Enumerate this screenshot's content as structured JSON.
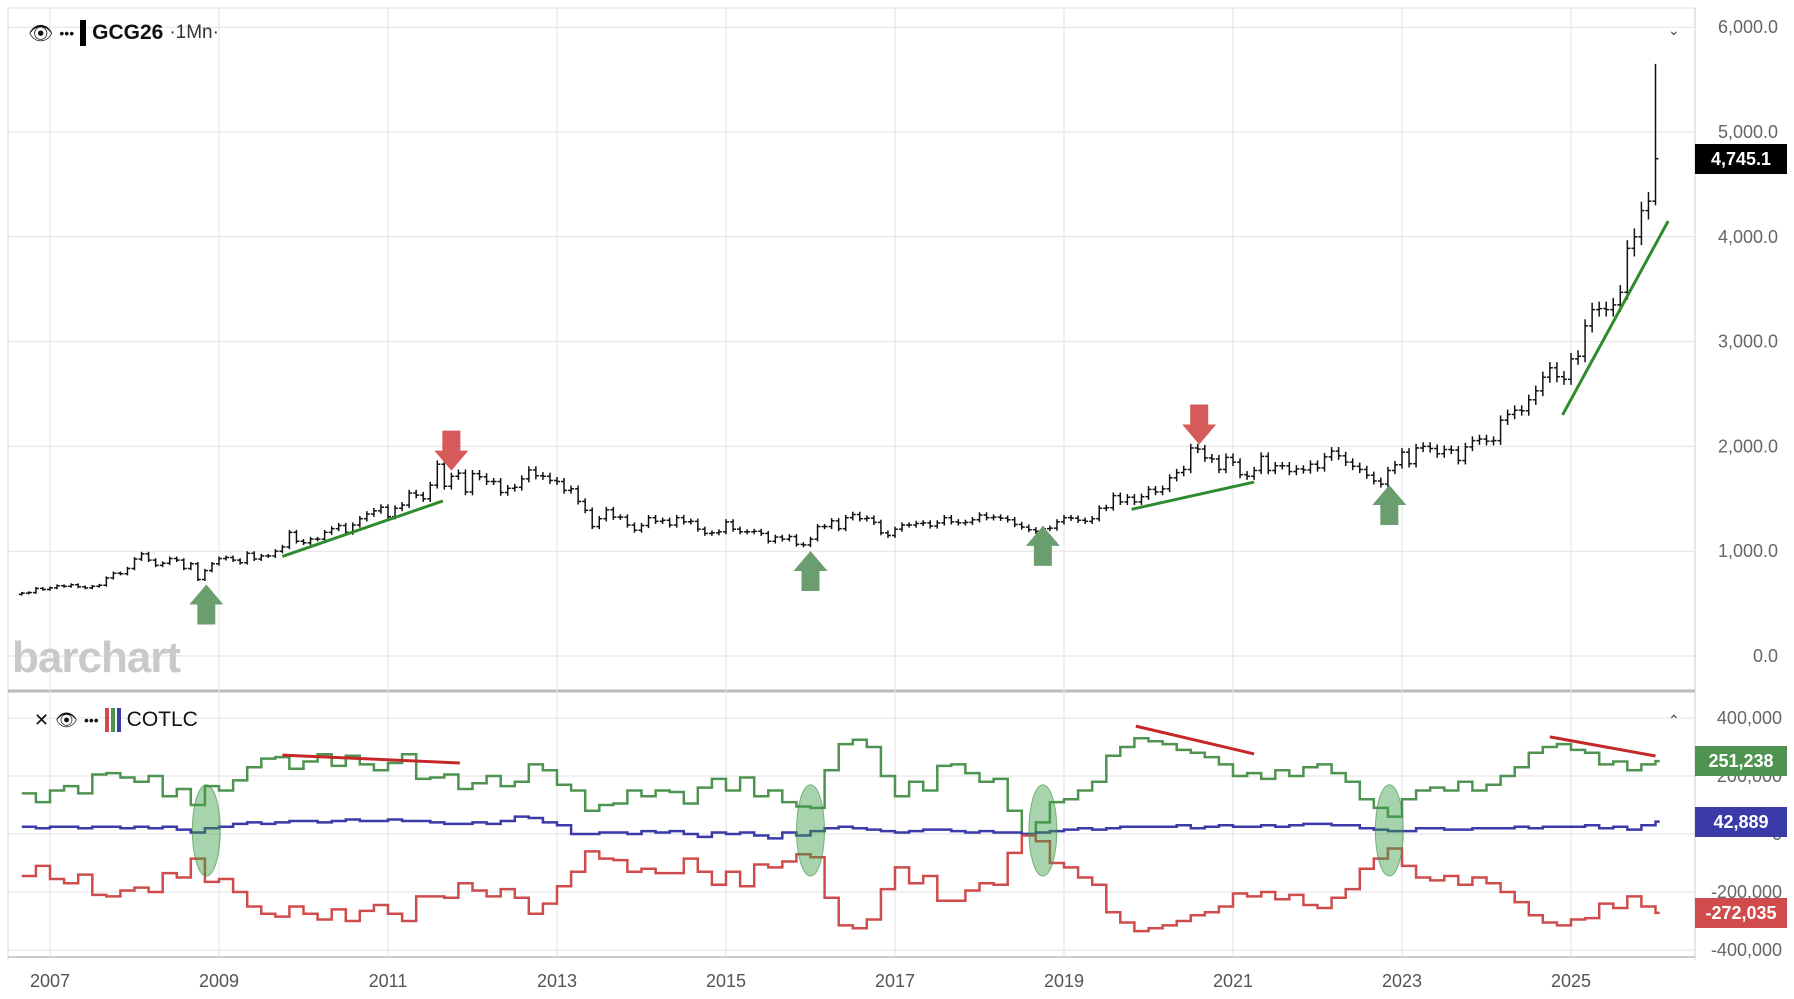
{
  "header": {
    "symbol": "GCG26",
    "period": "·1Mn·",
    "eye_icon": "eye-icon",
    "more_icon": "ellipsis-icon"
  },
  "lower_header": {
    "title": "COTLC",
    "close_icon": "close-icon",
    "eye_icon": "eye-icon",
    "more_icon": "ellipsis-icon"
  },
  "watermark": "barchart",
  "colors": {
    "green": "#4e9350",
    "blue": "#3a3aa8",
    "red": "#d04c4c",
    "trend_green": "#2e8b2e",
    "trend_red": "#c62828",
    "arrow_red": "#d65a5a",
    "arrow_green": "#6b9e6e"
  },
  "price_labels": {
    "last": "4,745.1",
    "green": "251,238",
    "blue": "42,889",
    "red": "-272,035"
  },
  "chart_data": [
    {
      "type": "bar",
      "subtype": "ohlc-monthly",
      "symbol": "GCG26",
      "start": "2006-09",
      "close": [
        600,
        605,
        645,
        635,
        650,
        670,
        665,
        680,
        660,
        650,
        665,
        675,
        745,
        790,
        785,
        835,
        925,
        975,
        915,
        865,
        885,
        930,
        915,
        835,
        880,
        730,
        815,
        880,
        930,
        940,
        915,
        890,
        980,
        925,
        955,
        955,
        1000,
        1040,
        1180,
        1095,
        1080,
        1115,
        1115,
        1180,
        1215,
        1245,
        1180,
        1250,
        1310,
        1355,
        1385,
        1420,
        1330,
        1410,
        1440,
        1555,
        1535,
        1500,
        1630,
        1830,
        1620,
        1715,
        1745,
        1565,
        1740,
        1710,
        1665,
        1665,
        1560,
        1600,
        1610,
        1690,
        1775,
        1720,
        1715,
        1675,
        1665,
        1580,
        1595,
        1475,
        1390,
        1235,
        1310,
        1395,
        1325,
        1325,
        1250,
        1200,
        1245,
        1320,
        1285,
        1295,
        1250,
        1320,
        1280,
        1285,
        1210,
        1170,
        1175,
        1185,
        1280,
        1210,
        1185,
        1185,
        1190,
        1170,
        1095,
        1135,
        1115,
        1140,
        1065,
        1060,
        1115,
        1235,
        1235,
        1290,
        1215,
        1320,
        1350,
        1310,
        1315,
        1275,
        1175,
        1150,
        1210,
        1250,
        1250,
        1265,
        1270,
        1240,
        1270,
        1320,
        1280,
        1270,
        1275,
        1300,
        1345,
        1320,
        1325,
        1315,
        1300,
        1255,
        1230,
        1205,
        1190,
        1215,
        1220,
        1280,
        1320,
        1315,
        1295,
        1285,
        1310,
        1410,
        1415,
        1530,
        1470,
        1515,
        1470,
        1520,
        1590,
        1565,
        1595,
        1700,
        1750,
        1780,
        1985,
        1975,
        1890,
        1880,
        1780,
        1895,
        1850,
        1730,
        1715,
        1770,
        1905,
        1770,
        1815,
        1815,
        1760,
        1785,
        1775,
        1830,
        1795,
        1900,
        1955,
        1910,
        1850,
        1810,
        1780,
        1725,
        1670,
        1640,
        1770,
        1825,
        1945,
        1835,
        1985,
        2000,
        1980,
        1930,
        1970,
        1965,
        1865,
        1995,
        2055,
        2070,
        2050,
        2055,
        2250,
        2305,
        2345,
        2340,
        2445,
        2530,
        2660,
        2750,
        2665,
        2640,
        2835,
        2860,
        3150,
        3305,
        3315,
        3305,
        3350,
        3470,
        3890,
        4000,
        4250,
        4340,
        4745.1
      ],
      "last_bar": {
        "high": 5650,
        "low": 4300,
        "close": 4745.1
      },
      "ylim": [
        0,
        6000
      ],
      "yticks": [
        "0.0",
        "1,000.0",
        "2,000.0",
        "3,000.0",
        "4,000.0",
        "5,000.0",
        "6,000.0"
      ],
      "ytick_values": [
        0,
        1000,
        2000,
        3000,
        4000,
        5000,
        6000
      ],
      "grid": true,
      "annotations": {
        "arrows_down": [
          {
            "x": 2011.75,
            "y": 2150
          },
          {
            "x": 2020.6,
            "y": 2400
          }
        ],
        "arrows_up": [
          {
            "x": 2008.85,
            "y": 300
          },
          {
            "x": 2016.0,
            "y": 620
          },
          {
            "x": 2018.75,
            "y": 860
          },
          {
            "x": 2022.85,
            "y": 1250
          }
        ],
        "trendlines": [
          {
            "x1": 2009.75,
            "y1": 950,
            "x2": 2011.65,
            "y2": 1480
          },
          {
            "x1": 2019.8,
            "y1": 1400,
            "x2": 2021.25,
            "y2": 1660
          },
          {
            "x1": 2024.9,
            "y1": 2300,
            "x2": 2026.15,
            "y2": 4150
          }
        ]
      }
    },
    {
      "type": "line",
      "subtype": "step",
      "title": "COTLC",
      "start": "2006-09",
      "step_months": 2,
      "series": [
        {
          "color": "#4e9350",
          "values": [
            140000,
            110000,
            150000,
            165000,
            140000,
            205000,
            210000,
            195000,
            180000,
            200000,
            130000,
            155000,
            100000,
            165000,
            150000,
            185000,
            230000,
            260000,
            265000,
            225000,
            250000,
            275000,
            235000,
            270000,
            240000,
            220000,
            245000,
            275000,
            190000,
            195000,
            205000,
            155000,
            175000,
            200000,
            165000,
            180000,
            240000,
            220000,
            170000,
            150000,
            80000,
            100000,
            105000,
            150000,
            130000,
            150000,
            145000,
            105000,
            160000,
            190000,
            150000,
            195000,
            130000,
            150000,
            110000,
            95000,
            90000,
            220000,
            310000,
            325000,
            300000,
            200000,
            130000,
            180000,
            150000,
            235000,
            240000,
            210000,
            180000,
            190000,
            80000,
            0,
            40000,
            110000,
            120000,
            150000,
            180000,
            270000,
            300000,
            330000,
            320000,
            310000,
            290000,
            280000,
            265000,
            240000,
            200000,
            210000,
            190000,
            220000,
            200000,
            230000,
            240000,
            210000,
            180000,
            120000,
            90000,
            60000,
            120000,
            150000,
            160000,
            150000,
            180000,
            150000,
            170000,
            200000,
            230000,
            280000,
            300000,
            310000,
            290000,
            280000,
            240000,
            250000,
            220000,
            240000,
            251238
          ]
        },
        {
          "color": "#3a3aa8",
          "values": [
            25000,
            20000,
            25000,
            25000,
            20000,
            25000,
            25000,
            20000,
            25000,
            20000,
            25000,
            15000,
            5000,
            20000,
            25000,
            35000,
            40000,
            35000,
            40000,
            45000,
            45000,
            40000,
            45000,
            50000,
            45000,
            45000,
            50000,
            45000,
            45000,
            40000,
            35000,
            35000,
            40000,
            35000,
            45000,
            60000,
            55000,
            40000,
            30000,
            0,
            0,
            5000,
            5000,
            0,
            10000,
            5000,
            10000,
            0,
            -10000,
            5000,
            0,
            5000,
            -5000,
            -15000,
            5000,
            -5000,
            10000,
            20000,
            25000,
            20000,
            15000,
            10000,
            5000,
            10000,
            15000,
            15000,
            10000,
            5000,
            10000,
            5000,
            5000,
            0,
            5000,
            10000,
            15000,
            20000,
            15000,
            20000,
            25000,
            25000,
            25000,
            25000,
            30000,
            20000,
            25000,
            30000,
            25000,
            25000,
            30000,
            25000,
            30000,
            35000,
            35000,
            30000,
            30000,
            20000,
            15000,
            10000,
            10000,
            20000,
            20000,
            15000,
            15000,
            20000,
            20000,
            20000,
            25000,
            20000,
            25000,
            25000,
            25000,
            30000,
            20000,
            25000,
            15000,
            30000,
            42889
          ]
        },
        {
          "color": "#d04c4c",
          "values": [
            -145000,
            -110000,
            -155000,
            -170000,
            -140000,
            -210000,
            -215000,
            -195000,
            -185000,
            -200000,
            -135000,
            -150000,
            -85000,
            -165000,
            -155000,
            -200000,
            -250000,
            -275000,
            -285000,
            -250000,
            -275000,
            -295000,
            -260000,
            -300000,
            -265000,
            -245000,
            -275000,
            -300000,
            -215000,
            -215000,
            -220000,
            -170000,
            -195000,
            -215000,
            -190000,
            -220000,
            -275000,
            -240000,
            -180000,
            -130000,
            -60000,
            -85000,
            -90000,
            -130000,
            -120000,
            -135000,
            -135000,
            -85000,
            -130000,
            -175000,
            -130000,
            -180000,
            -105000,
            -115000,
            -95000,
            -70000,
            -80000,
            -220000,
            -315000,
            -325000,
            -295000,
            -190000,
            -115000,
            -170000,
            -145000,
            -230000,
            -230000,
            -195000,
            -170000,
            -175000,
            -65000,
            -5000,
            -25000,
            -100000,
            -115000,
            -150000,
            -175000,
            -270000,
            -305000,
            -335000,
            -325000,
            -315000,
            -300000,
            -280000,
            -270000,
            -250000,
            -205000,
            -215000,
            -200000,
            -225000,
            -210000,
            -245000,
            -255000,
            -220000,
            -190000,
            -120000,
            -85000,
            -50000,
            -110000,
            -150000,
            -160000,
            -145000,
            -175000,
            -150000,
            -170000,
            -200000,
            -235000,
            -280000,
            -305000,
            -315000,
            -295000,
            -290000,
            -240000,
            -255000,
            -215000,
            -250000,
            -272035
          ]
        }
      ],
      "ylim": [
        -400000,
        400000
      ],
      "yticks": [
        "-400,000",
        "-200,000",
        "0",
        "200,000",
        "400,000"
      ],
      "ytick_values": [
        -400000,
        -200000,
        0,
        200000,
        400000
      ],
      "grid": true,
      "annotations": {
        "trendlines": [
          {
            "x1": 2009.75,
            "y1": 272000,
            "x2": 2011.85,
            "y2": 245000
          },
          {
            "x1": 2019.85,
            "y1": 372000,
            "x2": 2021.25,
            "y2": 276000
          },
          {
            "x1": 2024.75,
            "y1": 335000,
            "x2": 2026.0,
            "y2": 269000
          }
        ],
        "ellipses": [
          {
            "x": 2008.85,
            "top": 170000,
            "bottom": -145000
          },
          {
            "x": 2016.0,
            "top": 170000,
            "bottom": -145000
          },
          {
            "x": 2018.75,
            "top": 170000,
            "bottom": -145000
          },
          {
            "x": 2022.85,
            "top": 170000,
            "bottom": -145000
          }
        ]
      }
    }
  ],
  "x_axis": {
    "ticks": [
      "2007",
      "2009",
      "2011",
      "2013",
      "2015",
      "2017",
      "2019",
      "2021",
      "2023",
      "2025"
    ],
    "tick_values": [
      2007,
      2009,
      2011,
      2013,
      2015,
      2017,
      2019,
      2021,
      2023,
      2025
    ]
  }
}
